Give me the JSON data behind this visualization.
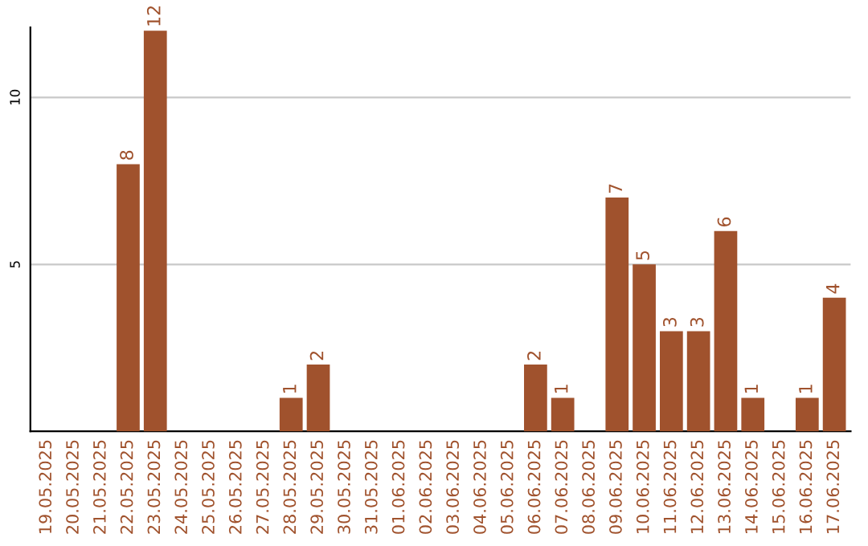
{
  "chart_data": {
    "type": "bar",
    "categories": [
      "19.05.2025",
      "20.05.2025",
      "21.05.2025",
      "22.05.2025",
      "23.05.2025",
      "24.05.2025",
      "25.05.2025",
      "26.05.2025",
      "27.05.2025",
      "28.05.2025",
      "29.05.2025",
      "30.05.2025",
      "31.05.2025",
      "01.06.2025",
      "02.06.2025",
      "03.06.2025",
      "04.06.2025",
      "05.06.2025",
      "06.06.2025",
      "07.06.2025",
      "08.06.2025",
      "09.06.2025",
      "10.06.2025",
      "11.06.2025",
      "12.06.2025",
      "13.06.2025",
      "14.06.2025",
      "15.06.2025",
      "16.06.2025",
      "17.06.2025"
    ],
    "values": [
      0,
      0,
      0,
      8,
      12,
      0,
      0,
      0,
      0,
      1,
      2,
      0,
      0,
      0,
      0,
      0,
      0,
      0,
      2,
      1,
      0,
      7,
      5,
      3,
      3,
      6,
      1,
      0,
      1,
      4
    ],
    "value_labels": [
      null,
      null,
      null,
      "8",
      "12",
      null,
      null,
      null,
      null,
      "1",
      "2",
      null,
      null,
      null,
      null,
      null,
      null,
      null,
      "2",
      "1",
      null,
      "7",
      "5",
      "3",
      "3",
      "6",
      "1",
      null,
      "1",
      "4"
    ],
    "color": "#a0522d",
    "ylim": [
      0,
      12.1
    ],
    "yticks": [
      5,
      10
    ],
    "grid": "y",
    "legend": false
  }
}
